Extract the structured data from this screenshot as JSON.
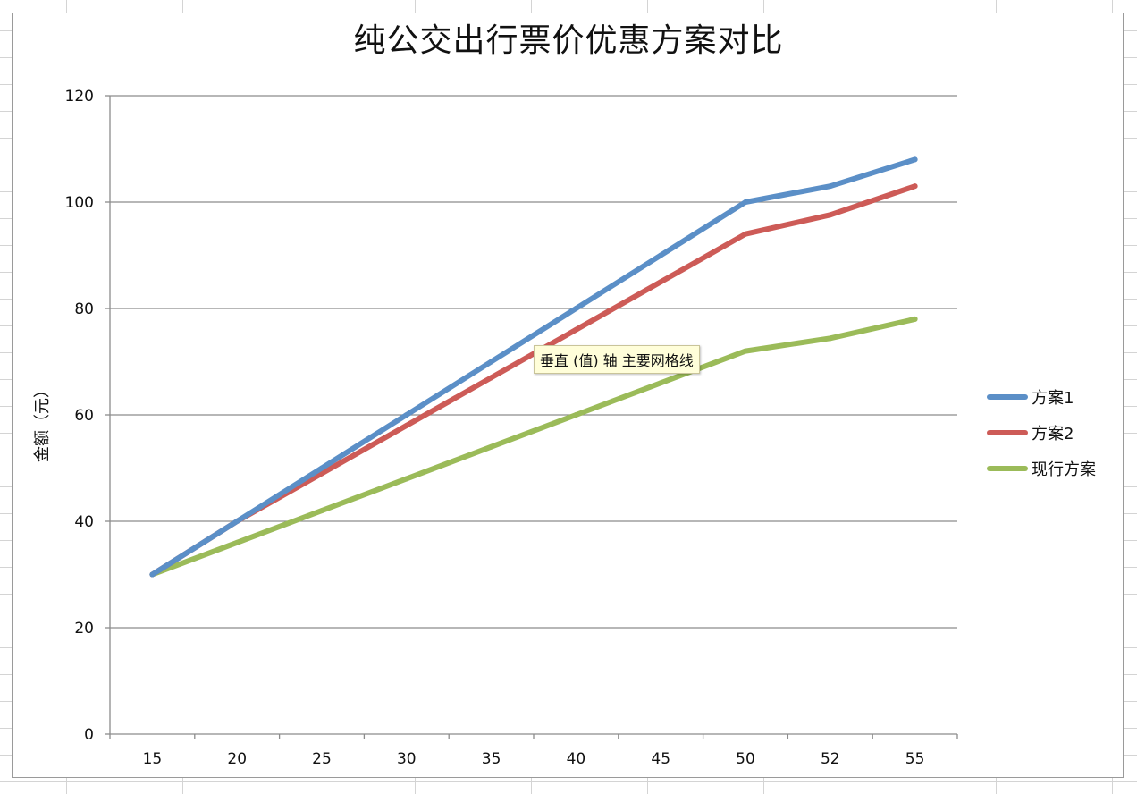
{
  "chart_data": {
    "type": "line",
    "title": "纯公交出行票价优惠方案对比",
    "ylabel": "金额（元）",
    "xlabel": "",
    "categories": [
      "15",
      "20",
      "25",
      "30",
      "35",
      "40",
      "45",
      "50",
      "52",
      "55"
    ],
    "ylim": [
      0,
      120
    ],
    "yticks": [
      0,
      20,
      40,
      60,
      80,
      100,
      120
    ],
    "grid": true,
    "legend_position": "right",
    "series": [
      {
        "name": "方案1",
        "color": "#5b8fc7",
        "values": [
          30,
          40,
          50,
          60,
          70,
          80,
          90,
          100,
          103,
          108
        ]
      },
      {
        "name": "方案2",
        "color": "#cd5b57",
        "values": [
          30,
          40,
          49,
          58,
          67,
          76,
          85,
          94,
          97.6,
          103
        ]
      },
      {
        "name": "现行方案",
        "color": "#9bbb59",
        "values": [
          30,
          36,
          42,
          48,
          54,
          60,
          66,
          72,
          74.4,
          78
        ]
      }
    ]
  },
  "tooltip": {
    "text": "垂直 (值) 轴 主要网格线"
  }
}
